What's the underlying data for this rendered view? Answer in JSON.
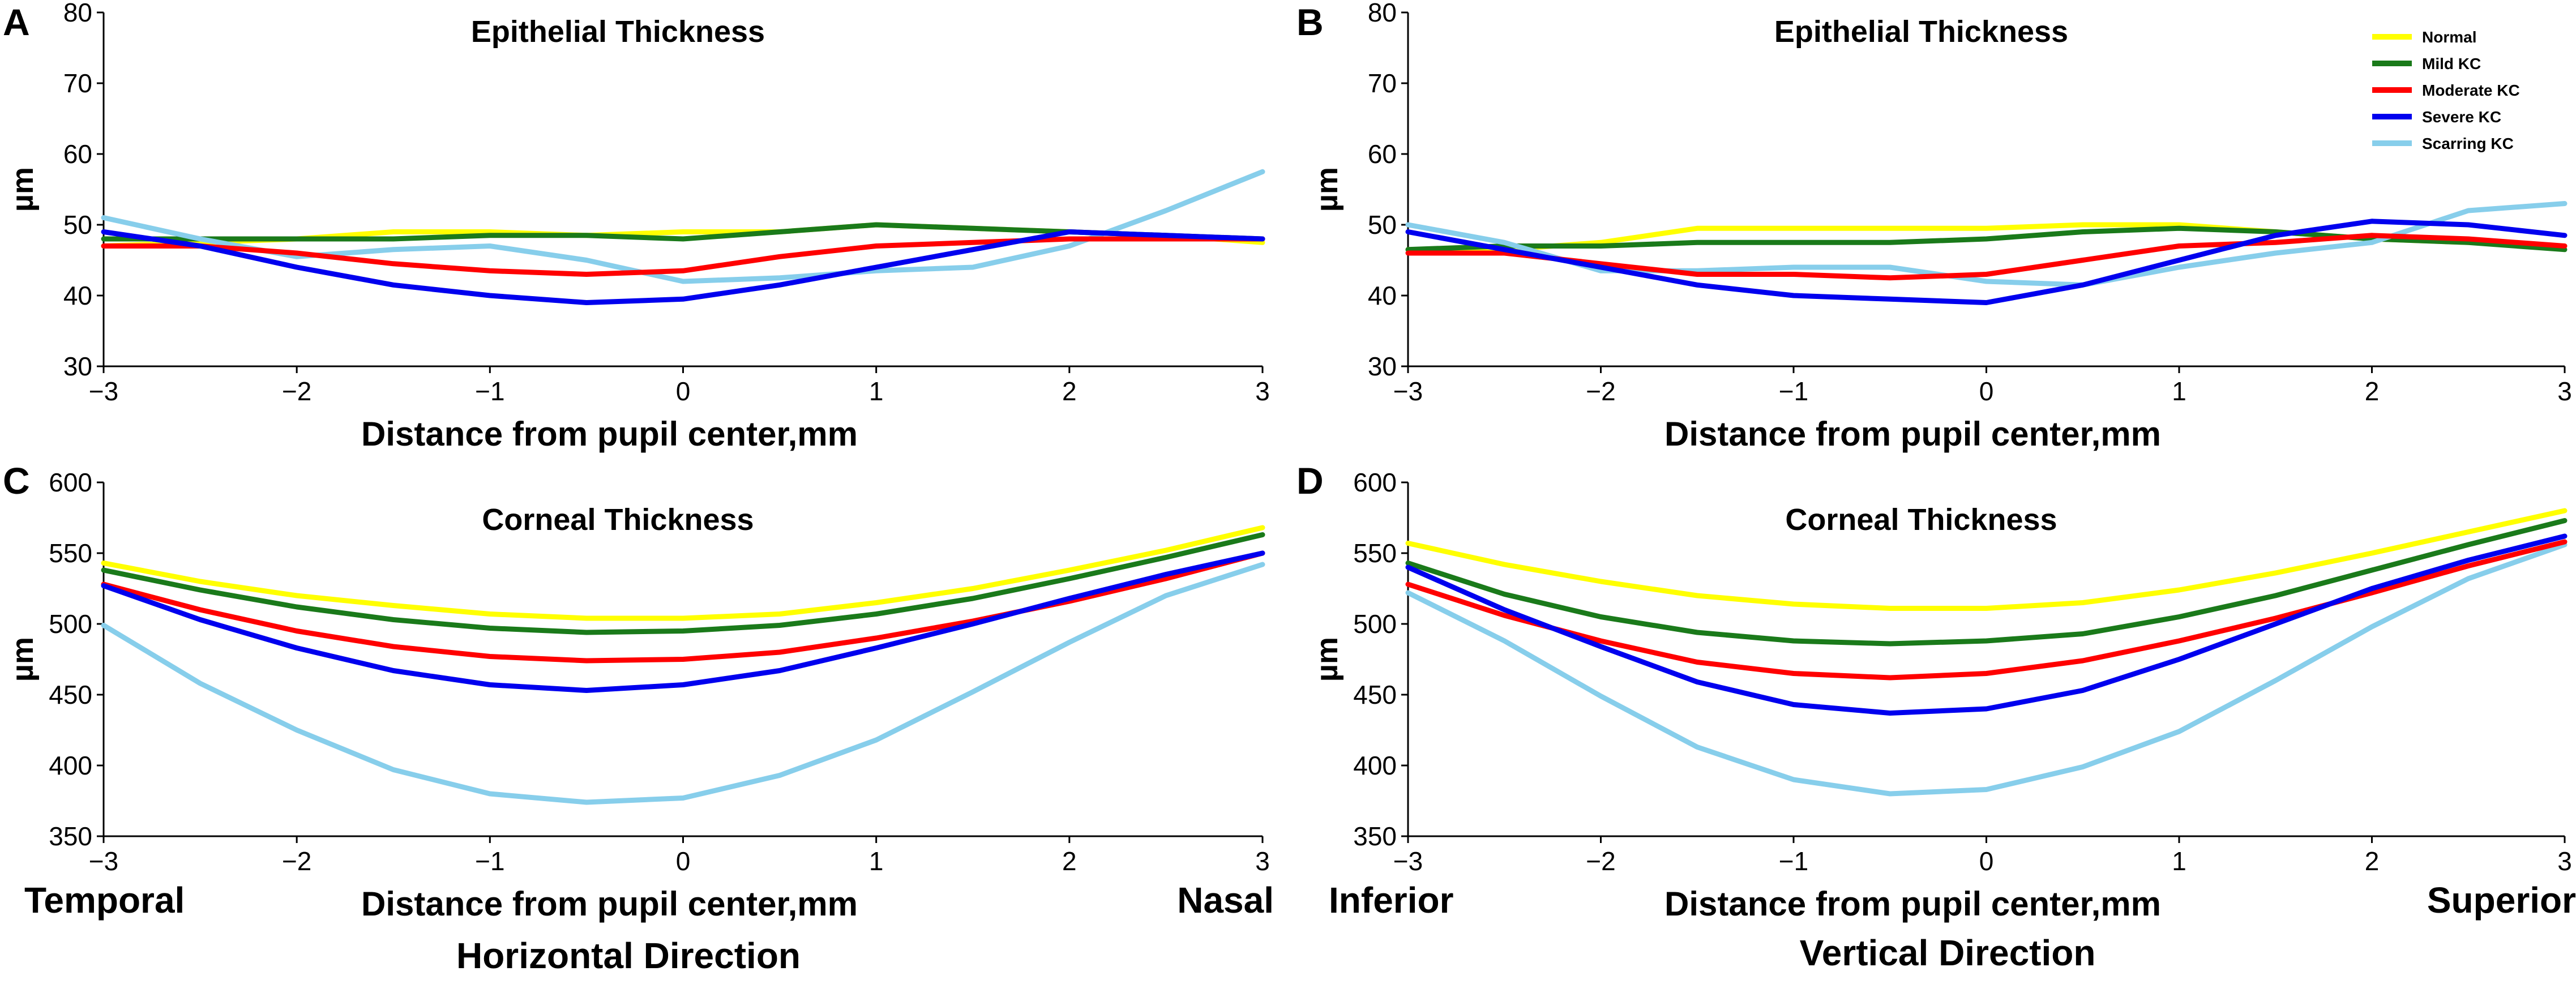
{
  "figure": {
    "bottom_left_text": "Horizontal Direction",
    "bottom_right_text": "Vertical Direction"
  },
  "legend": [
    {
      "name": "Normal",
      "color": "#ffff00"
    },
    {
      "name": "Mild KC",
      "color": "#1a7a1a"
    },
    {
      "name": "Moderate KC",
      "color": "#ff0000"
    },
    {
      "name": "Severe KC",
      "color": "#0000ee"
    },
    {
      "name": "Scarring KC",
      "color": "#87ceeb"
    }
  ],
  "chart_data": [
    {
      "panel": "A",
      "type": "line",
      "title": "Epithelial Thickness",
      "xlabel": "Distance from pupil center,mm",
      "ylabel": "µm",
      "xlim": [
        -3,
        3
      ],
      "ylim": [
        30,
        80
      ],
      "xticks": [
        -3,
        -2,
        -1,
        0,
        1,
        2,
        3
      ],
      "yticks": [
        30,
        40,
        50,
        60,
        70,
        80
      ],
      "side_labels": {
        "left": "",
        "right": ""
      },
      "x": [
        -3,
        -2.5,
        -2,
        -1.5,
        -1,
        -0.5,
        0,
        0.5,
        1,
        1.5,
        2,
        2.5,
        3
      ],
      "series": [
        {
          "name": "Normal",
          "values": [
            47,
            47.5,
            48,
            49,
            49,
            48.5,
            49,
            49,
            50,
            49.5,
            49,
            48.5,
            47.5
          ]
        },
        {
          "name": "Mild KC",
          "values": [
            48,
            48,
            48,
            48,
            48.5,
            48.5,
            48,
            49,
            50,
            49.5,
            49,
            48.5,
            48
          ]
        },
        {
          "name": "Moderate KC",
          "values": [
            47,
            47,
            46,
            44.5,
            43.5,
            43,
            43.5,
            45.5,
            47,
            47.5,
            48,
            48,
            48
          ]
        },
        {
          "name": "Severe KC",
          "values": [
            49,
            47,
            44,
            41.5,
            40,
            39,
            39.5,
            41.5,
            44,
            46.5,
            49,
            48.5,
            48
          ]
        },
        {
          "name": "Scarring KC",
          "values": [
            51,
            48,
            45.5,
            46.5,
            47,
            45,
            42,
            42.5,
            43.5,
            44,
            47,
            52,
            57.5
          ]
        }
      ]
    },
    {
      "panel": "B",
      "type": "line",
      "title": "Epithelial Thickness",
      "xlabel": "Distance from pupil center,mm",
      "ylabel": "µm",
      "xlim": [
        -3,
        3
      ],
      "ylim": [
        30,
        80
      ],
      "xticks": [
        -3,
        -2,
        -1,
        0,
        1,
        2,
        3
      ],
      "yticks": [
        30,
        40,
        50,
        60,
        70,
        80
      ],
      "side_labels": {
        "left": "",
        "right": ""
      },
      "x": [
        -3,
        -2.5,
        -2,
        -1.5,
        -1,
        -0.5,
        0,
        0.5,
        1,
        1.5,
        2,
        2.5,
        3
      ],
      "series": [
        {
          "name": "Normal",
          "values": [
            46.5,
            46.5,
            47.5,
            49.5,
            49.5,
            49.5,
            49.5,
            50,
            50,
            49,
            48,
            47.5,
            47
          ]
        },
        {
          "name": "Mild KC",
          "values": [
            46.5,
            47,
            47,
            47.5,
            47.5,
            47.5,
            48,
            49,
            49.5,
            49,
            48,
            47.5,
            46.5
          ]
        },
        {
          "name": "Moderate KC",
          "values": [
            46,
            46,
            44.5,
            43,
            43,
            42.5,
            43,
            45,
            47,
            47.5,
            48.5,
            48,
            47
          ]
        },
        {
          "name": "Severe KC",
          "values": [
            49,
            46.5,
            44,
            41.5,
            40,
            39.5,
            39,
            41.5,
            45,
            48.5,
            50.5,
            50,
            48.5
          ]
        },
        {
          "name": "Scarring KC",
          "values": [
            50,
            47.5,
            43.5,
            43.5,
            44,
            44,
            42,
            41.5,
            44,
            46,
            47.5,
            52,
            53
          ]
        }
      ]
    },
    {
      "panel": "C",
      "type": "line",
      "title": "Corneal Thickness",
      "xlabel": "Distance from pupil center,mm",
      "ylabel": "µm",
      "xlim": [
        -3,
        3
      ],
      "ylim": [
        350,
        600
      ],
      "xticks": [
        -3,
        -2,
        -1,
        0,
        1,
        2,
        3
      ],
      "yticks": [
        350,
        400,
        450,
        500,
        550,
        600
      ],
      "side_labels": {
        "left": "Temporal",
        "right": "Nasal"
      },
      "x": [
        -3,
        -2.5,
        -2,
        -1.5,
        -1,
        -0.5,
        0,
        0.5,
        1,
        1.5,
        2,
        2.5,
        3
      ],
      "series": [
        {
          "name": "Normal",
          "values": [
            543,
            530,
            520,
            513,
            507,
            504,
            504,
            507,
            515,
            525,
            538,
            552,
            568
          ]
        },
        {
          "name": "Mild KC",
          "values": [
            538,
            524,
            512,
            503,
            497,
            494,
            495,
            499,
            507,
            518,
            532,
            547,
            563
          ]
        },
        {
          "name": "Moderate KC",
          "values": [
            528,
            510,
            495,
            484,
            477,
            474,
            475,
            480,
            490,
            502,
            516,
            532,
            550
          ]
        },
        {
          "name": "Severe KC",
          "values": [
            527,
            503,
            483,
            467,
            457,
            453,
            457,
            467,
            483,
            500,
            518,
            535,
            550
          ]
        },
        {
          "name": "Scarring KC",
          "values": [
            499,
            458,
            425,
            397,
            380,
            374,
            377,
            393,
            418,
            452,
            487,
            520,
            542
          ]
        }
      ]
    },
    {
      "panel": "D",
      "type": "line",
      "title": "Corneal Thickness",
      "xlabel": "Distance from pupil center,mm",
      "ylabel": "µm",
      "xlim": [
        -3,
        3
      ],
      "ylim": [
        350,
        600
      ],
      "xticks": [
        -3,
        -2,
        -1,
        0,
        1,
        2,
        3
      ],
      "yticks": [
        350,
        400,
        450,
        500,
        550,
        600
      ],
      "side_labels": {
        "left": "Inferior",
        "right": "Superior"
      },
      "x": [
        -3,
        -2.5,
        -2,
        -1.5,
        -1,
        -0.5,
        0,
        0.5,
        1,
        1.5,
        2,
        2.5,
        3
      ],
      "series": [
        {
          "name": "Normal",
          "values": [
            557,
            542,
            530,
            520,
            514,
            511,
            511,
            515,
            524,
            536,
            550,
            565,
            580
          ]
        },
        {
          "name": "Mild KC",
          "values": [
            543,
            521,
            505,
            494,
            488,
            486,
            488,
            493,
            505,
            520,
            538,
            556,
            573
          ]
        },
        {
          "name": "Moderate KC",
          "values": [
            528,
            506,
            488,
            473,
            465,
            462,
            465,
            474,
            488,
            504,
            522,
            541,
            558
          ]
        },
        {
          "name": "Severe KC",
          "values": [
            540,
            510,
            484,
            459,
            443,
            437,
            440,
            453,
            475,
            500,
            525,
            545,
            562
          ]
        },
        {
          "name": "Scarring KC",
          "values": [
            522,
            488,
            449,
            413,
            390,
            380,
            383,
            399,
            424,
            460,
            498,
            532,
            556
          ]
        }
      ]
    }
  ]
}
